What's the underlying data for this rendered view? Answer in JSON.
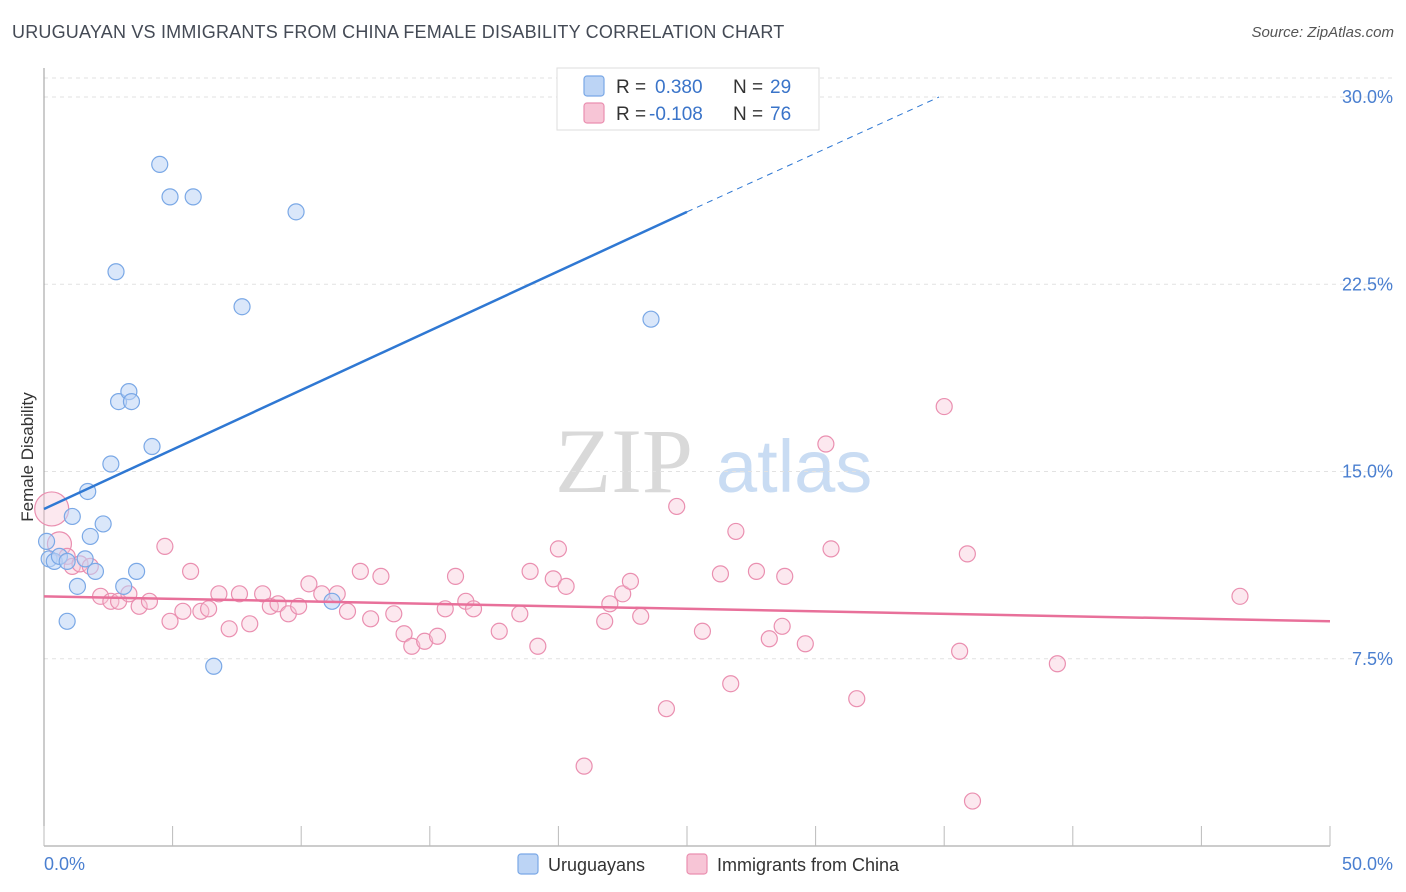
{
  "title": "URUGUAYAN VS IMMIGRANTS FROM CHINA FEMALE DISABILITY CORRELATION CHART",
  "source": "Source: ZipAtlas.com",
  "watermark": {
    "zip": "ZIP",
    "atlas": "atlas"
  },
  "colors": {
    "blue": "#7aa8e6",
    "blue_fill": "#bcd4f5",
    "blue_line": "#2f78d3",
    "pink": "#ea8fb0",
    "pink_fill": "#f7c5d6",
    "pink_line": "#e8709a",
    "tick_text": "#4a7fd0",
    "grid": "#dddddd"
  },
  "legend": {
    "rows": [
      {
        "r_label": "R = ",
        "r_value": "0.380",
        "n_label": "N = ",
        "n_value": "29",
        "series": "Uruguayans"
      },
      {
        "r_label": "R = ",
        "r_value": "-0.108",
        "n_label": "N = ",
        "n_value": "76",
        "series": "Immigrants from China"
      }
    ]
  },
  "chart_data": {
    "type": "scatter",
    "title": "URUGUAYAN VS IMMIGRANTS FROM CHINA FEMALE DISABILITY CORRELATION CHART",
    "xlabel": "",
    "ylabel": "Female Disability",
    "xlim": [
      0,
      50
    ],
    "ylim": [
      0,
      31
    ],
    "x_tick_labels": [
      "0.0%",
      "50.0%"
    ],
    "y_ticks": [
      7.5,
      15.0,
      22.5,
      30.0
    ],
    "y_tick_labels": [
      "7.5%",
      "15.0%",
      "22.5%",
      "30.0%"
    ],
    "grid": true,
    "series": [
      {
        "name": "Uruguayans",
        "color": "#7aa8e6",
        "points": [
          [
            0.1,
            12.2
          ],
          [
            0.2,
            11.5
          ],
          [
            0.4,
            11.4
          ],
          [
            0.6,
            11.6
          ],
          [
            0.9,
            11.4
          ],
          [
            1.1,
            13.2
          ],
          [
            1.3,
            10.4
          ],
          [
            1.7,
            14.2
          ],
          [
            1.8,
            12.4
          ],
          [
            2.0,
            11.0
          ],
          [
            2.3,
            12.9
          ],
          [
            2.6,
            15.3
          ],
          [
            2.8,
            23.0
          ],
          [
            2.9,
            17.8
          ],
          [
            3.1,
            10.4
          ],
          [
            3.3,
            18.2
          ],
          [
            3.4,
            17.8
          ],
          [
            3.6,
            11.0
          ],
          [
            4.2,
            16.0
          ],
          [
            4.5,
            27.3
          ],
          [
            4.9,
            26.0
          ],
          [
            5.8,
            26.0
          ],
          [
            6.6,
            7.2
          ],
          [
            7.7,
            21.6
          ],
          [
            9.8,
            25.4
          ],
          [
            11.2,
            9.8
          ],
          [
            23.6,
            21.1
          ],
          [
            0.9,
            9.0
          ],
          [
            1.6,
            11.5
          ]
        ]
      },
      {
        "name": "Immigrants from China",
        "color": "#ea8fb0",
        "points": [
          [
            0.3,
            13.5
          ],
          [
            0.6,
            12.1
          ],
          [
            0.9,
            11.6
          ],
          [
            1.1,
            11.2
          ],
          [
            1.4,
            11.3
          ],
          [
            1.8,
            11.2
          ],
          [
            2.2,
            10.0
          ],
          [
            2.6,
            9.8
          ],
          [
            2.9,
            9.8
          ],
          [
            3.3,
            10.1
          ],
          [
            3.7,
            9.6
          ],
          [
            4.1,
            9.8
          ],
          [
            4.7,
            12.0
          ],
          [
            4.9,
            9.0
          ],
          [
            5.4,
            9.4
          ],
          [
            5.7,
            11.0
          ],
          [
            6.1,
            9.4
          ],
          [
            6.4,
            9.5
          ],
          [
            6.8,
            10.1
          ],
          [
            7.2,
            8.7
          ],
          [
            7.6,
            10.1
          ],
          [
            8.0,
            8.9
          ],
          [
            8.5,
            10.1
          ],
          [
            8.8,
            9.6
          ],
          [
            9.1,
            9.7
          ],
          [
            9.5,
            9.3
          ],
          [
            9.9,
            9.6
          ],
          [
            10.3,
            10.5
          ],
          [
            10.8,
            10.1
          ],
          [
            11.4,
            10.1
          ],
          [
            11.8,
            9.4
          ],
          [
            12.3,
            11.0
          ],
          [
            12.7,
            9.1
          ],
          [
            13.1,
            10.8
          ],
          [
            13.6,
            9.3
          ],
          [
            14.0,
            8.5
          ],
          [
            14.3,
            8.0
          ],
          [
            14.8,
            8.2
          ],
          [
            15.3,
            8.4
          ],
          [
            15.6,
            9.5
          ],
          [
            16.0,
            10.8
          ],
          [
            16.4,
            9.8
          ],
          [
            16.7,
            9.5
          ],
          [
            17.7,
            8.6
          ],
          [
            18.5,
            9.3
          ],
          [
            18.9,
            11.0
          ],
          [
            19.2,
            8.0
          ],
          [
            19.8,
            10.7
          ],
          [
            20.0,
            11.9
          ],
          [
            20.3,
            10.4
          ],
          [
            21.0,
            3.2
          ],
          [
            21.8,
            9.0
          ],
          [
            22.0,
            9.7
          ],
          [
            22.5,
            10.1
          ],
          [
            22.8,
            10.6
          ],
          [
            23.2,
            9.2
          ],
          [
            24.2,
            5.5
          ],
          [
            24.6,
            13.6
          ],
          [
            25.6,
            8.6
          ],
          [
            26.3,
            10.9
          ],
          [
            26.7,
            6.5
          ],
          [
            26.9,
            12.6
          ],
          [
            27.7,
            11.0
          ],
          [
            28.2,
            8.3
          ],
          [
            28.8,
            10.8
          ],
          [
            28.7,
            8.8
          ],
          [
            29.6,
            8.1
          ],
          [
            30.4,
            16.1
          ],
          [
            30.6,
            11.9
          ],
          [
            31.6,
            5.9
          ],
          [
            35.0,
            17.6
          ],
          [
            35.6,
            7.8
          ],
          [
            35.9,
            11.7
          ],
          [
            36.1,
            1.8
          ],
          [
            39.4,
            7.3
          ],
          [
            46.5,
            10.0
          ]
        ]
      }
    ],
    "trendlines": [
      {
        "series": "Uruguayans",
        "x0": 0,
        "y0": 13.5,
        "x_solid_end": 25.0,
        "y_solid_end": 25.4,
        "x1": 34.8,
        "y1": 30.0
      },
      {
        "series": "Immigrants from China",
        "x0": 0,
        "y0": 10.0,
        "x1": 50.0,
        "y1": 9.0
      }
    ],
    "legend_position": "bottom-center"
  }
}
